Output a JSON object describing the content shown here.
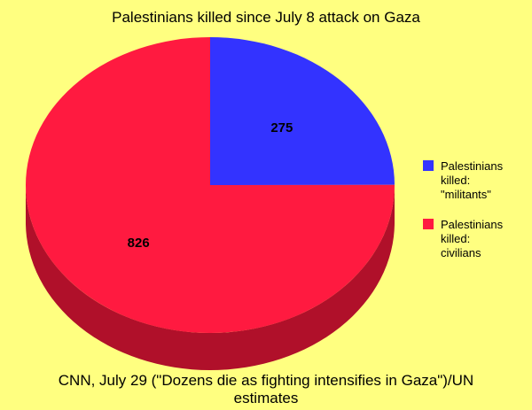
{
  "chart_data": {
    "type": "pie",
    "title": "Palestinians killed since July 8 attack on Gaza",
    "categories": [
      "Palestinians killed: \"militants\"",
      "Palestinians killed: civilians"
    ],
    "values": [
      275,
      826
    ],
    "data_labels": [
      "275",
      "826"
    ],
    "legend": [
      {
        "lines": [
          "Palestinians",
          "killed:",
          "\"militants\""
        ],
        "color": "#3333FF"
      },
      {
        "lines": [
          "Palestinians",
          "killed:",
          "civilians"
        ],
        "color": "#FF1A40"
      }
    ],
    "legend_position": "right",
    "colors": [
      "#3333FF",
      "#FF1A40"
    ],
    "side_colors": [
      "#1A1AA0",
      "#B0102A"
    ],
    "style": "3d-pie",
    "caption": "CNN, July 29 (\"Dozens die as fighting intensifies in Gaza\")/UN estimates"
  },
  "background_color": "#FFFF80"
}
